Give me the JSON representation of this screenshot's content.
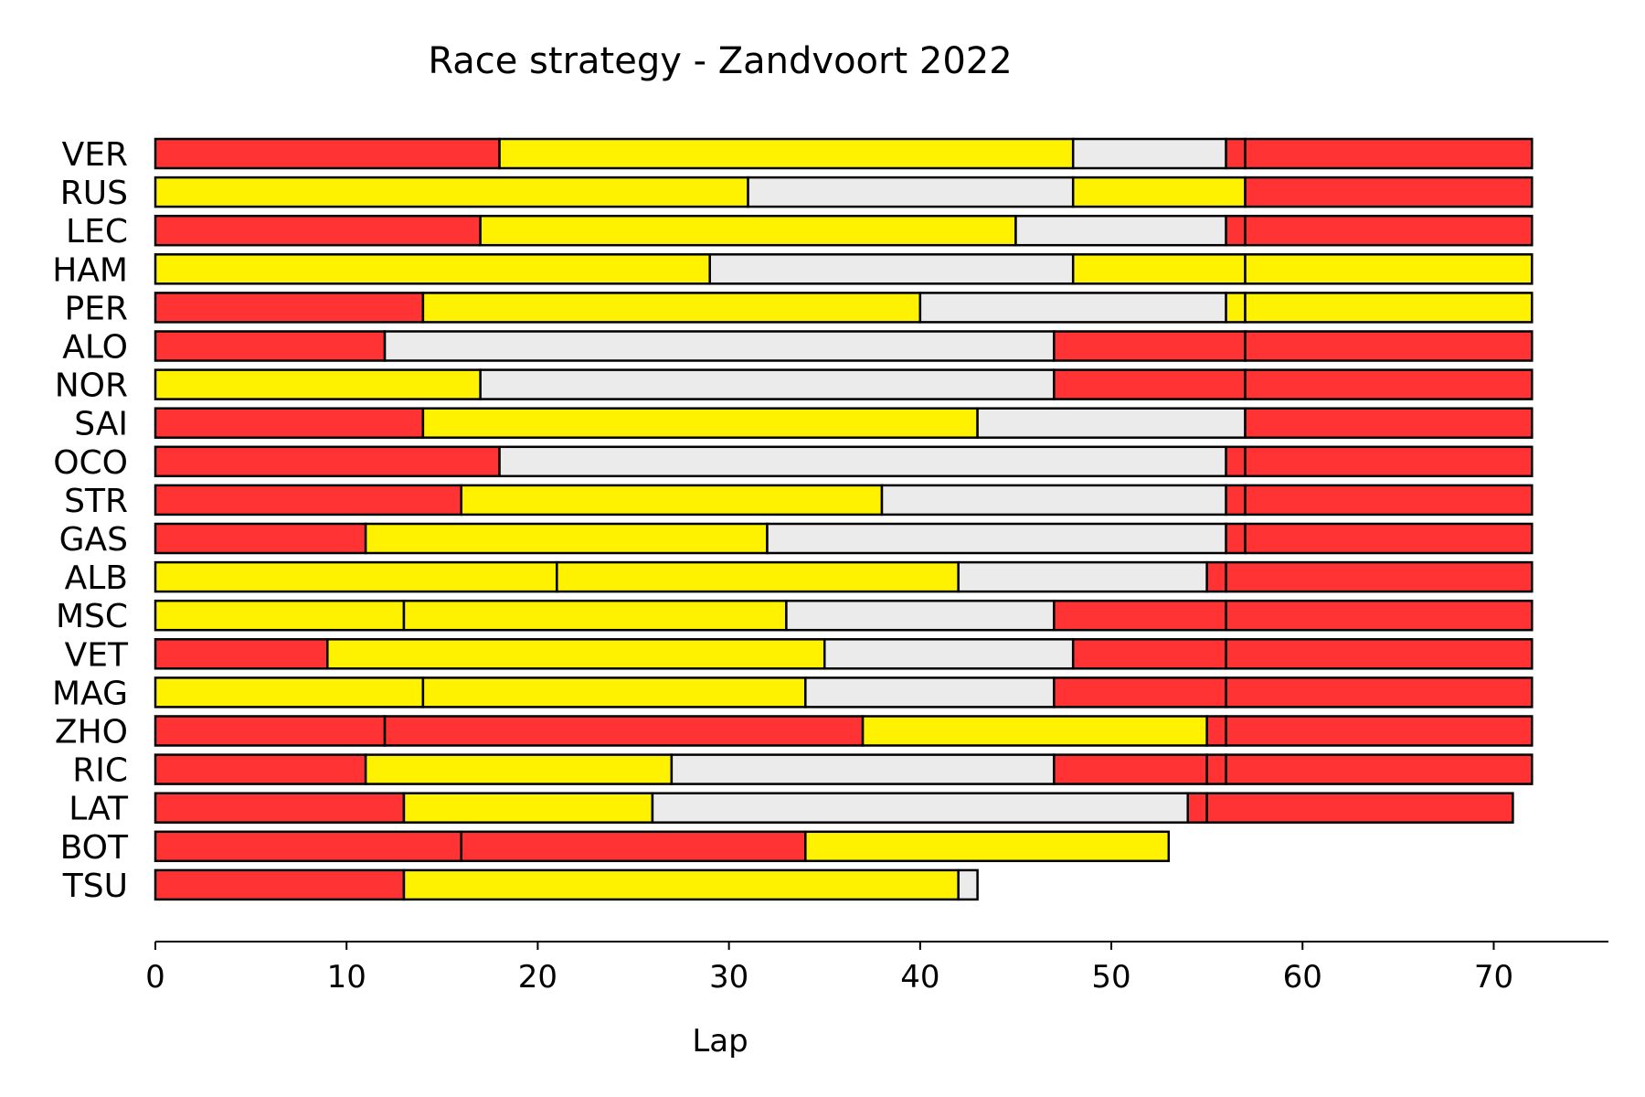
{
  "chart_data": {
    "type": "bar",
    "orientation": "horizontal",
    "stacked": true,
    "title": "Race strategy - Zandvoort 2022",
    "xlabel": "Lap",
    "ylabel": "",
    "xlim": [
      0,
      76
    ],
    "xticks": [
      0,
      10,
      20,
      30,
      40,
      50,
      60,
      70
    ],
    "grid": false,
    "compound_colors": {
      "SOFT": "#ff3333",
      "MEDIUM": "#fff200",
      "HARD": "#ebebeb"
    },
    "bar_edge_color": "#000000",
    "drivers": [
      {
        "driver": "VER",
        "stints": [
          {
            "compound": "SOFT",
            "laps": 18
          },
          {
            "compound": "MEDIUM",
            "laps": 30
          },
          {
            "compound": "HARD",
            "laps": 8
          },
          {
            "compound": "SOFT",
            "laps": 1
          },
          {
            "compound": "SOFT",
            "laps": 15
          }
        ]
      },
      {
        "driver": "RUS",
        "stints": [
          {
            "compound": "MEDIUM",
            "laps": 31
          },
          {
            "compound": "HARD",
            "laps": 17
          },
          {
            "compound": "MEDIUM",
            "laps": 9
          },
          {
            "compound": "SOFT",
            "laps": 15
          }
        ]
      },
      {
        "driver": "LEC",
        "stints": [
          {
            "compound": "SOFT",
            "laps": 17
          },
          {
            "compound": "MEDIUM",
            "laps": 28
          },
          {
            "compound": "HARD",
            "laps": 11
          },
          {
            "compound": "SOFT",
            "laps": 1
          },
          {
            "compound": "SOFT",
            "laps": 15
          }
        ]
      },
      {
        "driver": "HAM",
        "stints": [
          {
            "compound": "MEDIUM",
            "laps": 29
          },
          {
            "compound": "HARD",
            "laps": 19
          },
          {
            "compound": "MEDIUM",
            "laps": 9
          },
          {
            "compound": "MEDIUM",
            "laps": 15
          }
        ]
      },
      {
        "driver": "PER",
        "stints": [
          {
            "compound": "SOFT",
            "laps": 14
          },
          {
            "compound": "MEDIUM",
            "laps": 26
          },
          {
            "compound": "HARD",
            "laps": 16
          },
          {
            "compound": "MEDIUM",
            "laps": 1
          },
          {
            "compound": "MEDIUM",
            "laps": 15
          }
        ]
      },
      {
        "driver": "ALO",
        "stints": [
          {
            "compound": "SOFT",
            "laps": 12
          },
          {
            "compound": "HARD",
            "laps": 35
          },
          {
            "compound": "SOFT",
            "laps": 10
          },
          {
            "compound": "SOFT",
            "laps": 15
          }
        ]
      },
      {
        "driver": "NOR",
        "stints": [
          {
            "compound": "MEDIUM",
            "laps": 17
          },
          {
            "compound": "HARD",
            "laps": 30
          },
          {
            "compound": "SOFT",
            "laps": 10
          },
          {
            "compound": "SOFT",
            "laps": 15
          }
        ]
      },
      {
        "driver": "SAI",
        "stints": [
          {
            "compound": "SOFT",
            "laps": 14
          },
          {
            "compound": "MEDIUM",
            "laps": 29
          },
          {
            "compound": "HARD",
            "laps": 14
          },
          {
            "compound": "SOFT",
            "laps": 15
          }
        ]
      },
      {
        "driver": "OCO",
        "stints": [
          {
            "compound": "SOFT",
            "laps": 18
          },
          {
            "compound": "HARD",
            "laps": 38
          },
          {
            "compound": "SOFT",
            "laps": 1
          },
          {
            "compound": "SOFT",
            "laps": 15
          }
        ]
      },
      {
        "driver": "STR",
        "stints": [
          {
            "compound": "SOFT",
            "laps": 16
          },
          {
            "compound": "MEDIUM",
            "laps": 22
          },
          {
            "compound": "HARD",
            "laps": 18
          },
          {
            "compound": "SOFT",
            "laps": 1
          },
          {
            "compound": "SOFT",
            "laps": 15
          }
        ]
      },
      {
        "driver": "GAS",
        "stints": [
          {
            "compound": "SOFT",
            "laps": 11
          },
          {
            "compound": "MEDIUM",
            "laps": 21
          },
          {
            "compound": "HARD",
            "laps": 24
          },
          {
            "compound": "SOFT",
            "laps": 1
          },
          {
            "compound": "SOFT",
            "laps": 15
          }
        ]
      },
      {
        "driver": "ALB",
        "stints": [
          {
            "compound": "MEDIUM",
            "laps": 21
          },
          {
            "compound": "MEDIUM",
            "laps": 21
          },
          {
            "compound": "HARD",
            "laps": 13
          },
          {
            "compound": "SOFT",
            "laps": 1
          },
          {
            "compound": "SOFT",
            "laps": 16
          }
        ]
      },
      {
        "driver": "MSC",
        "stints": [
          {
            "compound": "MEDIUM",
            "laps": 13
          },
          {
            "compound": "MEDIUM",
            "laps": 20
          },
          {
            "compound": "HARD",
            "laps": 14
          },
          {
            "compound": "SOFT",
            "laps": 9
          },
          {
            "compound": "SOFT",
            "laps": 16
          }
        ]
      },
      {
        "driver": "VET",
        "stints": [
          {
            "compound": "SOFT",
            "laps": 9
          },
          {
            "compound": "MEDIUM",
            "laps": 26
          },
          {
            "compound": "HARD",
            "laps": 13
          },
          {
            "compound": "SOFT",
            "laps": 8
          },
          {
            "compound": "SOFT",
            "laps": 16
          }
        ]
      },
      {
        "driver": "MAG",
        "stints": [
          {
            "compound": "MEDIUM",
            "laps": 14
          },
          {
            "compound": "MEDIUM",
            "laps": 20
          },
          {
            "compound": "HARD",
            "laps": 13
          },
          {
            "compound": "SOFT",
            "laps": 9
          },
          {
            "compound": "SOFT",
            "laps": 16
          }
        ]
      },
      {
        "driver": "ZHO",
        "stints": [
          {
            "compound": "SOFT",
            "laps": 12
          },
          {
            "compound": "SOFT",
            "laps": 25
          },
          {
            "compound": "MEDIUM",
            "laps": 18
          },
          {
            "compound": "SOFT",
            "laps": 1
          },
          {
            "compound": "SOFT",
            "laps": 16
          }
        ]
      },
      {
        "driver": "RIC",
        "stints": [
          {
            "compound": "SOFT",
            "laps": 11
          },
          {
            "compound": "MEDIUM",
            "laps": 16
          },
          {
            "compound": "HARD",
            "laps": 20
          },
          {
            "compound": "SOFT",
            "laps": 8
          },
          {
            "compound": "SOFT",
            "laps": 1
          },
          {
            "compound": "SOFT",
            "laps": 16
          }
        ]
      },
      {
        "driver": "LAT",
        "stints": [
          {
            "compound": "SOFT",
            "laps": 13
          },
          {
            "compound": "MEDIUM",
            "laps": 13
          },
          {
            "compound": "HARD",
            "laps": 28
          },
          {
            "compound": "SOFT",
            "laps": 1
          },
          {
            "compound": "SOFT",
            "laps": 16
          }
        ]
      },
      {
        "driver": "BOT",
        "stints": [
          {
            "compound": "SOFT",
            "laps": 16
          },
          {
            "compound": "SOFT",
            "laps": 18
          },
          {
            "compound": "MEDIUM",
            "laps": 19
          }
        ]
      },
      {
        "driver": "TSU",
        "stints": [
          {
            "compound": "SOFT",
            "laps": 13
          },
          {
            "compound": "MEDIUM",
            "laps": 29
          },
          {
            "compound": "HARD",
            "laps": 1
          }
        ]
      }
    ]
  }
}
